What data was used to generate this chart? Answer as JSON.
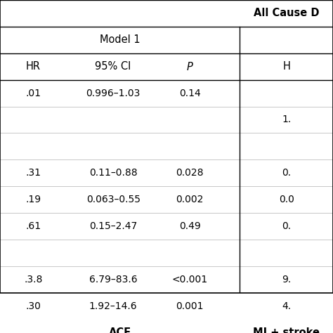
{
  "title_right": "All Cause D",
  "model1_header": "Model 1",
  "col_headers": [
    "HR",
    "95% CI",
    "P",
    "H"
  ],
  "rows": [
    [
      ".01",
      "0.996–1.03",
      "0.14",
      ""
    ],
    [
      "",
      "",
      "",
      "1."
    ],
    [
      "",
      "",
      "",
      ""
    ],
    [
      ".31",
      "0.11–0.88",
      "0.028",
      "0."
    ],
    [
      ".19",
      "0.063–0.55",
      "0.002",
      "0.0"
    ],
    [
      ".61",
      "0.15–2.47",
      "0.49",
      "0."
    ],
    [
      "",
      "",
      "",
      ""
    ],
    [
      ".3.8",
      "6.79–83.6",
      "<0.001",
      "9."
    ],
    [
      ".30",
      "1.92–14.6",
      "0.001",
      "4."
    ]
  ],
  "footer_left": "ACE",
  "footer_right": "MI + stroke",
  "bg_color": "#ffffff",
  "text_color": "#000000",
  "line_color": "#000000",
  "font_size": 10,
  "header_font_size": 10.5
}
